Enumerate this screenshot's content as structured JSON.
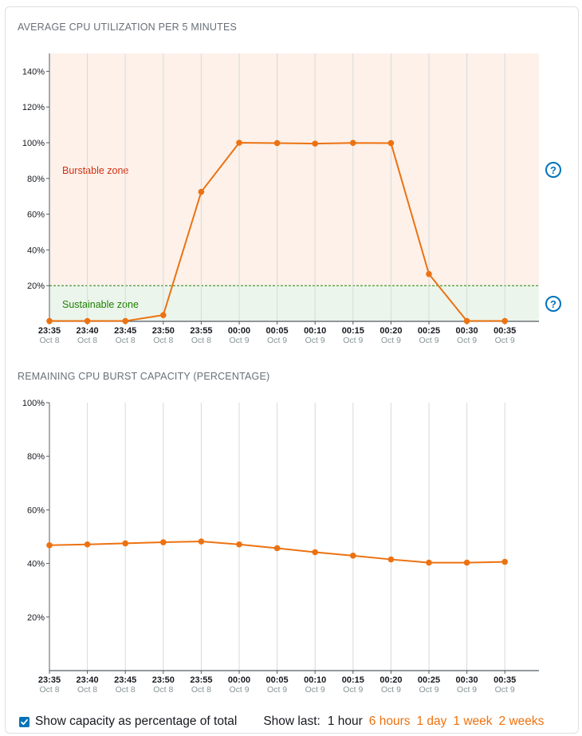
{
  "chart1_title": "AVERAGE CPU UTILIZATION PER 5 MINUTES",
  "chart2_title": "REMAINING CPU BURST CAPACITY (PERCENTAGE)",
  "colors": {
    "series": "#ec7211",
    "burstable_bg": "#fdf1ea",
    "sustainable_bg": "#ecf5ec",
    "threshold_line": "#1d8102",
    "burstable_text": "#d13212",
    "sustainable_text": "#1d8102",
    "help_icon": "#0073bb"
  },
  "zones": {
    "burstable_label": "Burstable zone",
    "sustainable_label": "Sustainable zone",
    "threshold": 20
  },
  "help_icons": [
    "help-icon",
    "help-icon"
  ],
  "footer": {
    "checkbox_label": "Show capacity as percentage of total",
    "checkbox_checked": true,
    "show_last_label": "Show last:",
    "ranges": [
      {
        "label": "1 hour",
        "active": true
      },
      {
        "label": "6 hours",
        "active": false
      },
      {
        "label": "1 day",
        "active": false
      },
      {
        "label": "1 week",
        "active": false
      },
      {
        "label": "2 weeks",
        "active": false
      }
    ]
  },
  "chart_data": [
    {
      "type": "line",
      "title": "AVERAGE CPU UTILIZATION PER 5 MINUTES",
      "x": [
        "23:35",
        "23:40",
        "23:45",
        "23:50",
        "23:55",
        "00:00",
        "00:05",
        "00:10",
        "00:15",
        "00:20",
        "00:25",
        "00:30",
        "00:35"
      ],
      "x_dates": [
        "Oct 8",
        "Oct 8",
        "Oct 8",
        "Oct 8",
        "Oct 8",
        "Oct 9",
        "Oct 9",
        "Oct 9",
        "Oct 9",
        "Oct 9",
        "Oct 9",
        "Oct 9",
        "Oct 9"
      ],
      "series": [
        {
          "values": [
            0.2,
            0.2,
            0.2,
            3.5,
            72.5,
            100,
            99.8,
            99.5,
            99.9,
            99.8,
            26.5,
            0.2,
            0.2
          ]
        }
      ],
      "ylim": [
        0,
        150
      ],
      "yticks": [
        20,
        40,
        60,
        80,
        100,
        120,
        140
      ],
      "ytick_labels": [
        "20%",
        "40%",
        "60%",
        "80%",
        "100%",
        "120%",
        "140%"
      ],
      "grid": "vertical"
    },
    {
      "type": "line",
      "title": "REMAINING CPU BURST CAPACITY (PERCENTAGE)",
      "x": [
        "23:35",
        "23:40",
        "23:45",
        "23:50",
        "23:55",
        "00:00",
        "00:05",
        "00:10",
        "00:15",
        "00:20",
        "00:25",
        "00:30",
        "00:35"
      ],
      "x_dates": [
        "Oct 8",
        "Oct 8",
        "Oct 8",
        "Oct 8",
        "Oct 8",
        "Oct 9",
        "Oct 9",
        "Oct 9",
        "Oct 9",
        "Oct 9",
        "Oct 9",
        "Oct 9",
        "Oct 9"
      ],
      "series": [
        {
          "values": [
            46.8,
            47.1,
            47.5,
            47.9,
            48.2,
            47.1,
            45.7,
            44.2,
            42.9,
            41.5,
            40.3,
            40.3,
            40.6
          ]
        }
      ],
      "ylim": [
        0,
        100
      ],
      "yticks": [
        20,
        40,
        60,
        80,
        100
      ],
      "ytick_labels": [
        "20%",
        "40%",
        "60%",
        "80%",
        "100%"
      ],
      "grid": "vertical"
    }
  ]
}
